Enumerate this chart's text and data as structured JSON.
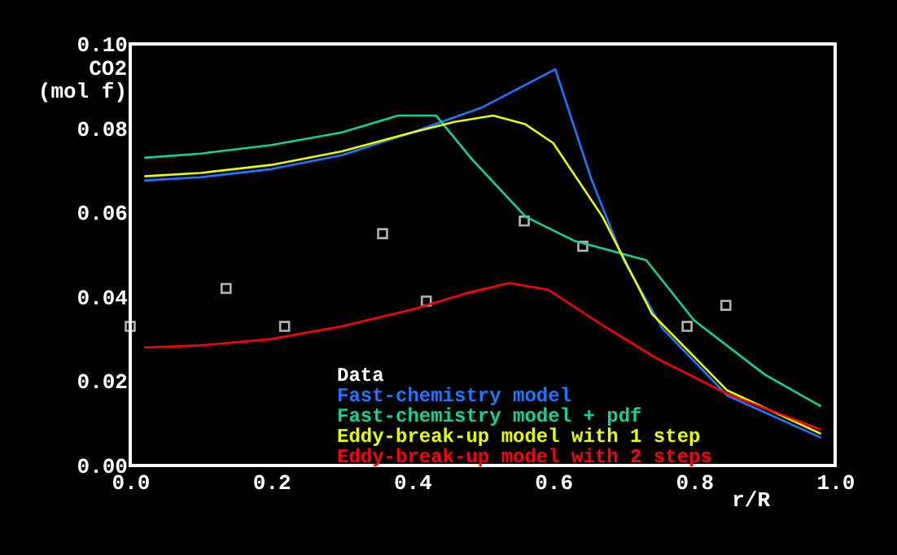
{
  "chart_data": {
    "type": "line",
    "ylabel": "CO2 (mol f)",
    "xlabel": "r/R",
    "xlim": [
      0,
      1
    ],
    "ylim": [
      0,
      0.1
    ],
    "xticks": [
      {
        "value": 0,
        "label": "0.0"
      },
      {
        "value": 0.2,
        "label": "0.2"
      },
      {
        "value": 0.4,
        "label": "0.4"
      },
      {
        "value": 0.6,
        "label": "0.6"
      },
      {
        "value": 0.8,
        "label": "0.8"
      },
      {
        "value": 1,
        "label": "1.0"
      }
    ],
    "yticks": [
      {
        "value": 0,
        "label": "0.00"
      },
      {
        "value": 0.02,
        "label": "0.02"
      },
      {
        "value": 0.04,
        "label": "0.04"
      },
      {
        "value": 0.06,
        "label": "0.06"
      },
      {
        "value": 0.08,
        "label": "0.08"
      },
      {
        "value": 0.1,
        "label": "0.10"
      }
    ],
    "grid": false,
    "legend": "bottom",
    "line_style": "solid",
    "series": [
      {
        "name": "Data",
        "type": "scatter",
        "marker": "square",
        "color": "#ffffff",
        "x": [
          0.0,
          0.136,
          0.219,
          0.358,
          0.42,
          0.559,
          0.642,
          0.79,
          0.845
        ],
        "values": [
          0.033,
          0.042,
          0.033,
          0.055,
          0.039,
          0.058,
          0.052,
          0.033,
          0.038
        ]
      },
      {
        "name": "Fast-chemistry model",
        "color": "#1e78ff",
        "x": [
          0.02,
          0.1,
          0.2,
          0.3,
          0.4,
          0.45,
          0.5,
          0.603,
          0.654,
          0.7,
          0.755,
          0.847,
          0.98
        ],
        "values": [
          0.0676,
          0.0684,
          0.0703,
          0.0736,
          0.079,
          0.082,
          0.085,
          0.094,
          0.068,
          0.0487,
          0.0325,
          0.0166,
          0.0066
        ]
      },
      {
        "name": "Fast-chemistry model + pdf",
        "color": "#14d296",
        "x": [
          0.02,
          0.1,
          0.2,
          0.3,
          0.38,
          0.434,
          0.485,
          0.561,
          0.63,
          0.732,
          0.8,
          0.9,
          0.98
        ],
        "values": [
          0.073,
          0.074,
          0.076,
          0.079,
          0.083,
          0.083,
          0.0726,
          0.059,
          0.0533,
          0.0487,
          0.0344,
          0.0216,
          0.014
        ]
      },
      {
        "name": "Eddy-break-up model with 1 step",
        "color": "#e6ff00",
        "x": [
          0.02,
          0.1,
          0.2,
          0.3,
          0.4,
          0.46,
          0.515,
          0.56,
          0.6,
          0.67,
          0.74,
          0.847,
          0.98
        ],
        "values": [
          0.0686,
          0.0694,
          0.0713,
          0.0745,
          0.079,
          0.0815,
          0.083,
          0.081,
          0.0765,
          0.059,
          0.036,
          0.0178,
          0.0075
        ]
      },
      {
        "name": "Eddy-break-up model with 2 steps",
        "color": "#ff0000",
        "x": [
          0.02,
          0.1,
          0.2,
          0.3,
          0.4,
          0.48,
          0.538,
          0.593,
          0.67,
          0.746,
          0.847,
          0.98
        ],
        "values": [
          0.028,
          0.0285,
          0.03,
          0.033,
          0.037,
          0.041,
          0.0433,
          0.0417,
          0.0333,
          0.0255,
          0.017,
          0.0085
        ]
      }
    ]
  }
}
